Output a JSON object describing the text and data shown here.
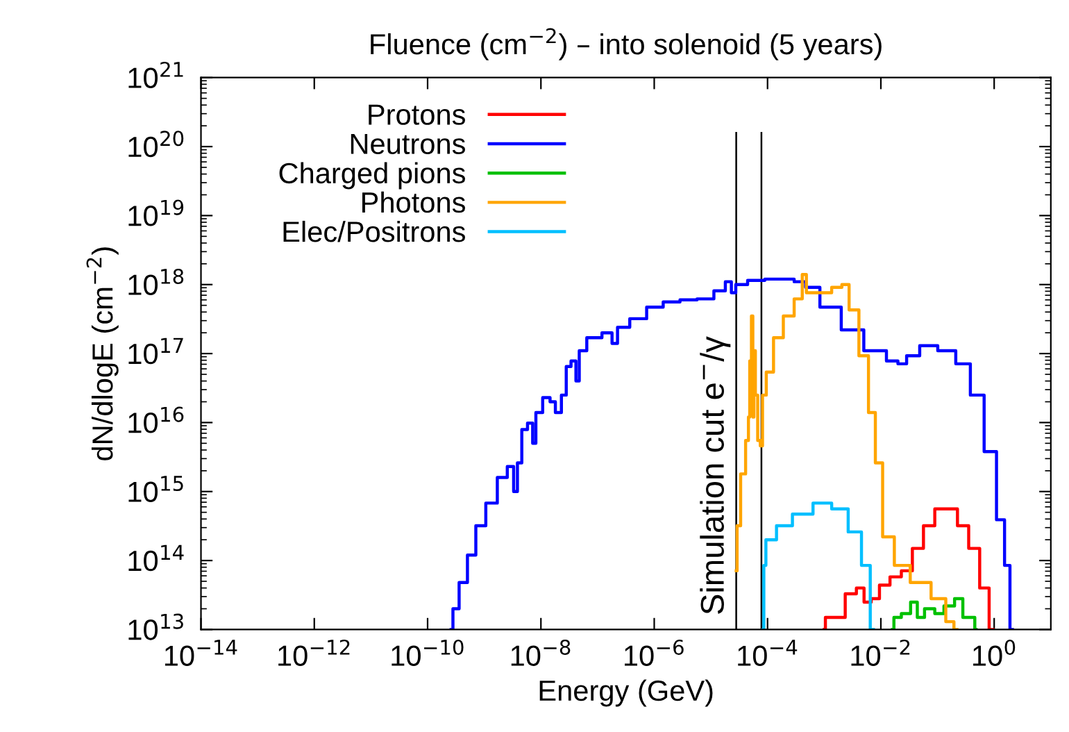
{
  "chart_data": {
    "type": "step",
    "title": "Fluence (cm$^{−2}$) – into solenoid (5 years)",
    "xlabel": "Energy (GeV)",
    "ylabel": "dN/dlogE (cm$^{−2}$)",
    "log": "xy",
    "grid": false,
    "legend": "top left",
    "line_style": "solid",
    "marker": "none",
    "xlim": [
      1e-14,
      10
    ],
    "ylim": [
      10000000000000.0,
      1e+21
    ],
    "xticks": [
      {
        "value": 1e-14,
        "label": "10$^{−14}$"
      },
      {
        "value": 1e-12,
        "label": "10$^{−12}$"
      },
      {
        "value": 1e-10,
        "label": "10$^{−10}$"
      },
      {
        "value": 1e-08,
        "label": "10$^{−8}$"
      },
      {
        "value": 1e-06,
        "label": "10$^{−6}$"
      },
      {
        "value": 0.0001,
        "label": "10$^{−4}$"
      },
      {
        "value": 0.01,
        "label": "10$^{−2}$"
      },
      {
        "value": 1,
        "label": "10$^{0}$"
      }
    ],
    "yticks": [
      {
        "value": 10000000000000.0,
        "label": "10$^{13}$"
      },
      {
        "value": 100000000000000.0,
        "label": "10$^{14}$"
      },
      {
        "value": 1000000000000000.0,
        "label": "10$^{15}$"
      },
      {
        "value": 1e+16,
        "label": "10$^{16}$"
      },
      {
        "value": 1e+17,
        "label": "10$^{17}$"
      },
      {
        "value": 1e+18,
        "label": "10$^{18}$"
      },
      {
        "value": 1e+19,
        "label": "10$^{19}$"
      },
      {
        "value": 1e+20,
        "label": "10$^{20}$"
      },
      {
        "value": 1e+21,
        "label": "10$^{21}$"
      }
    ],
    "ref_lines": [
      {
        "axis": "x",
        "value": 2.8e-05,
        "label": "Simulation cut e$^{−}$/γ",
        "color": "#000000"
      },
      {
        "axis": "x",
        "value": 7.8e-05,
        "label": null,
        "color": "#000000"
      }
    ],
    "series": [
      {
        "name": "Protons",
        "color": "#ff0000",
        "x": [
          0.001,
          0.0011,
          0.0018,
          0.0029,
          0.0045,
          0.0056,
          0.0079,
          0.011,
          0.018,
          0.028,
          0.044,
          0.069,
          0.11,
          0.17,
          0.28,
          0.43,
          0.68,
          0.95
        ],
        "values": [
          10000000000000.0,
          15000000000000.0,
          15000000000000.0,
          33000000000000.0,
          40000000000000.0,
          25000000000000.0,
          28000000000000.0,
          44000000000000.0,
          58000000000000.0,
          71000000000000.0,
          150000000000000.0,
          320000000000000.0,
          560000000000000.0,
          560000000000000.0,
          320000000000000.0,
          150000000000000.0,
          40000000000000.0,
          10000000000000.0
        ]
      },
      {
        "name": "Neutrons",
        "color": "#0000ff",
        "x": [
          2.6e-10,
          3e-10,
          4.2e-10,
          5.9e-10,
          8.3e-10,
          1.3e-09,
          2.1e-09,
          3e-09,
          3.6e-09,
          4.1e-09,
          5.1e-09,
          6.5e-09,
          7.8e-09,
          8.5e-09,
          1.3e-08,
          1.6e-08,
          2e-08,
          2.6e-08,
          3e-08,
          3.8e-08,
          4.5e-08,
          5e-08,
          7.9e-08,
          1.6e-07,
          2e-07,
          2.5e-07,
          4.9e-07,
          9.8e-07,
          1.9e-06,
          3.8e-06,
          7.6e-06,
          1.5e-05,
          2.1e-05,
          2.5e-05,
          3e-05,
          5.9e-05,
          0.00012,
          0.00023,
          0.00036,
          0.00058,
          0.0011,
          0.0029,
          0.0071,
          0.018,
          0.022,
          0.035,
          0.062,
          0.14,
          0.28,
          0.48,
          0.85,
          1.35,
          1.7,
          2.1
        ],
        "values": [
          10000000000000.0,
          20000000000000.0,
          48000000000000.0,
          120000000000000.0,
          320000000000000.0,
          680000000000000.0,
          1600000000000000.0,
          2300000000000000.0,
          1000000000000000.0,
          2600000000000000.0,
          7900000000000000.0,
          9800000000000000.0,
          5000000000000000.0,
          1.4e+16,
          2.3e+16,
          2e+16,
          1.4e+16,
          2.5e+16,
          6.5e+16,
          7.8e+16,
          4e+16,
          1.1e+17,
          1.7e+17,
          2e+17,
          1.4e+17,
          2.4e+17,
          3.2e+17,
          4.7e+17,
          5.6e+17,
          6e+17,
          6.2e+17,
          8.1e+17,
          1.1e+18,
          7.6e+17,
          1e+18,
          1.15e+18,
          1.2e+18,
          1.2e+18,
          1.1e+18,
          9.1e+17,
          4.7e+17,
          2.2e+17,
          1.1e+17,
          7.8e+16,
          7.1e+16,
          9.3e+16,
          1.3e+17,
          1.1e+17,
          7.1e+16,
          2.5e+16,
          3800000000000000.0,
          390000000000000.0,
          85000000000000.0,
          10000000000000.0
        ]
      },
      {
        "name": "Charged pions",
        "color": "#00c000",
        "x": [
          0.016,
          0.018,
          0.028,
          0.039,
          0.049,
          0.069,
          0.11,
          0.15,
          0.25,
          0.31,
          0.43,
          0.48
        ],
        "values": [
          10000000000000.0,
          15000000000000.0,
          17000000000000.0,
          25000000000000.0,
          15000000000000.0,
          20000000000000.0,
          17000000000000.0,
          22000000000000.0,
          28000000000000.0,
          15000000000000.0,
          15000000000000.0,
          10000000000000.0
        ]
      },
      {
        "name": "Photons",
        "color": "#ffa500",
        "x": [
          2.8e-05,
          3e-05,
          3.7e-05,
          4.5e-05,
          4.7e-05,
          5e-05,
          5.4e-05,
          5.6e-05,
          5.9e-05,
          6.3e-05,
          7.1e-05,
          7.8e-05,
          8.5e-05,
          0.000105,
          0.00015,
          0.00023,
          0.00036,
          0.00046,
          0.00051,
          0.00091,
          0.0018,
          0.0023,
          0.0032,
          0.005,
          0.0071,
          0.0089,
          0.0126,
          0.022,
          0.044,
          0.11,
          0.17,
          0.22
        ],
        "values": [
          71000000000000.0,
          320000000000000.0,
          1800000000000000.0,
          5500000000000000.0,
          1.2e+16,
          7.8e+16,
          3.5e+17,
          1.2e+16,
          1.1e+17,
          2.5e+16,
          5500000000000000.0,
          4600000000000000.0,
          2.5e+16,
          5.4e+16,
          1.7e+17,
          3.5e+17,
          6.2e+17,
          1.4e+18,
          7.6e+17,
          7.6e+17,
          9.1e+17,
          1e+18,
          4.3e+17,
          9.3e+16,
          1.4e+16,
          2600000000000000.0,
          220000000000000.0,
          85000000000000.0,
          48000000000000.0,
          28000000000000.0,
          13000000000000.0,
          10000000000000.0
        ]
      },
      {
        "name": "Elec/Positrons",
        "color": "#00bfff",
        "x": [
          8.3e-05,
          8.9e-05,
          9.8e-05,
          0.00019,
          0.00036,
          0.00091,
          0.0018,
          0.0035,
          0.0056,
          0.0074
        ],
        "values": [
          10000000000000.0,
          85000000000000.0,
          200000000000000.0,
          320000000000000.0,
          470000000000000.0,
          680000000000000.0,
          560000000000000.0,
          260000000000000.0,
          85000000000000.0,
          10000000000000.0
        ]
      }
    ]
  }
}
